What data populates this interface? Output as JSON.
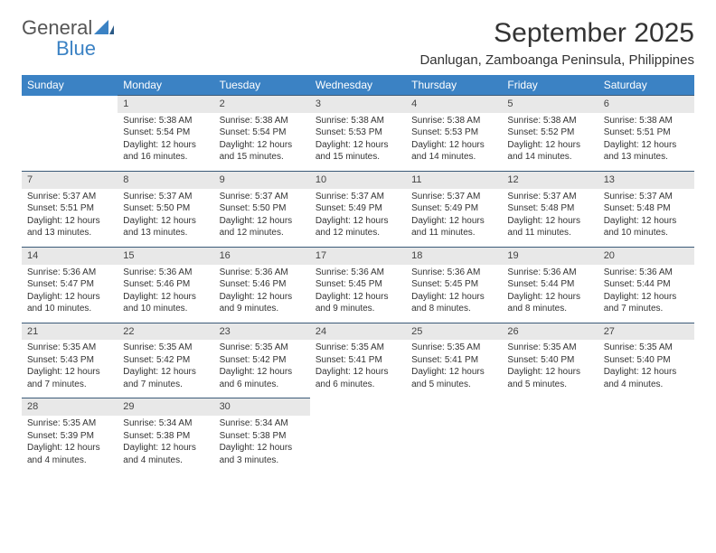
{
  "brand": {
    "general": "General",
    "blue": "Blue"
  },
  "title": "September 2025",
  "location": "Danlugan, Zamboanga Peninsula, Philippines",
  "colors": {
    "header_bg": "#3b82c4",
    "header_text": "#ffffff",
    "daynum_bg": "#e8e8e8",
    "daynum_border": "#3b5a78",
    "text": "#333333",
    "logo_gray": "#555555",
    "logo_blue": "#3b82c4"
  },
  "fonts": {
    "title_size": 30,
    "location_size": 15,
    "th_size": 12,
    "daynum_size": 11,
    "cell_size": 10
  },
  "weekdays": [
    "Sunday",
    "Monday",
    "Tuesday",
    "Wednesday",
    "Thursday",
    "Friday",
    "Saturday"
  ],
  "weeks": [
    {
      "nums": [
        "",
        "1",
        "2",
        "3",
        "4",
        "5",
        "6"
      ],
      "cells": [
        null,
        {
          "sunrise": "Sunrise: 5:38 AM",
          "sunset": "Sunset: 5:54 PM",
          "daylight": "Daylight: 12 hours and 16 minutes."
        },
        {
          "sunrise": "Sunrise: 5:38 AM",
          "sunset": "Sunset: 5:54 PM",
          "daylight": "Daylight: 12 hours and 15 minutes."
        },
        {
          "sunrise": "Sunrise: 5:38 AM",
          "sunset": "Sunset: 5:53 PM",
          "daylight": "Daylight: 12 hours and 15 minutes."
        },
        {
          "sunrise": "Sunrise: 5:38 AM",
          "sunset": "Sunset: 5:53 PM",
          "daylight": "Daylight: 12 hours and 14 minutes."
        },
        {
          "sunrise": "Sunrise: 5:38 AM",
          "sunset": "Sunset: 5:52 PM",
          "daylight": "Daylight: 12 hours and 14 minutes."
        },
        {
          "sunrise": "Sunrise: 5:38 AM",
          "sunset": "Sunset: 5:51 PM",
          "daylight": "Daylight: 12 hours and 13 minutes."
        }
      ]
    },
    {
      "nums": [
        "7",
        "8",
        "9",
        "10",
        "11",
        "12",
        "13"
      ],
      "cells": [
        {
          "sunrise": "Sunrise: 5:37 AM",
          "sunset": "Sunset: 5:51 PM",
          "daylight": "Daylight: 12 hours and 13 minutes."
        },
        {
          "sunrise": "Sunrise: 5:37 AM",
          "sunset": "Sunset: 5:50 PM",
          "daylight": "Daylight: 12 hours and 13 minutes."
        },
        {
          "sunrise": "Sunrise: 5:37 AM",
          "sunset": "Sunset: 5:50 PM",
          "daylight": "Daylight: 12 hours and 12 minutes."
        },
        {
          "sunrise": "Sunrise: 5:37 AM",
          "sunset": "Sunset: 5:49 PM",
          "daylight": "Daylight: 12 hours and 12 minutes."
        },
        {
          "sunrise": "Sunrise: 5:37 AM",
          "sunset": "Sunset: 5:49 PM",
          "daylight": "Daylight: 12 hours and 11 minutes."
        },
        {
          "sunrise": "Sunrise: 5:37 AM",
          "sunset": "Sunset: 5:48 PM",
          "daylight": "Daylight: 12 hours and 11 minutes."
        },
        {
          "sunrise": "Sunrise: 5:37 AM",
          "sunset": "Sunset: 5:48 PM",
          "daylight": "Daylight: 12 hours and 10 minutes."
        }
      ]
    },
    {
      "nums": [
        "14",
        "15",
        "16",
        "17",
        "18",
        "19",
        "20"
      ],
      "cells": [
        {
          "sunrise": "Sunrise: 5:36 AM",
          "sunset": "Sunset: 5:47 PM",
          "daylight": "Daylight: 12 hours and 10 minutes."
        },
        {
          "sunrise": "Sunrise: 5:36 AM",
          "sunset": "Sunset: 5:46 PM",
          "daylight": "Daylight: 12 hours and 10 minutes."
        },
        {
          "sunrise": "Sunrise: 5:36 AM",
          "sunset": "Sunset: 5:46 PM",
          "daylight": "Daylight: 12 hours and 9 minutes."
        },
        {
          "sunrise": "Sunrise: 5:36 AM",
          "sunset": "Sunset: 5:45 PM",
          "daylight": "Daylight: 12 hours and 9 minutes."
        },
        {
          "sunrise": "Sunrise: 5:36 AM",
          "sunset": "Sunset: 5:45 PM",
          "daylight": "Daylight: 12 hours and 8 minutes."
        },
        {
          "sunrise": "Sunrise: 5:36 AM",
          "sunset": "Sunset: 5:44 PM",
          "daylight": "Daylight: 12 hours and 8 minutes."
        },
        {
          "sunrise": "Sunrise: 5:36 AM",
          "sunset": "Sunset: 5:44 PM",
          "daylight": "Daylight: 12 hours and 7 minutes."
        }
      ]
    },
    {
      "nums": [
        "21",
        "22",
        "23",
        "24",
        "25",
        "26",
        "27"
      ],
      "cells": [
        {
          "sunrise": "Sunrise: 5:35 AM",
          "sunset": "Sunset: 5:43 PM",
          "daylight": "Daylight: 12 hours and 7 minutes."
        },
        {
          "sunrise": "Sunrise: 5:35 AM",
          "sunset": "Sunset: 5:42 PM",
          "daylight": "Daylight: 12 hours and 7 minutes."
        },
        {
          "sunrise": "Sunrise: 5:35 AM",
          "sunset": "Sunset: 5:42 PM",
          "daylight": "Daylight: 12 hours and 6 minutes."
        },
        {
          "sunrise": "Sunrise: 5:35 AM",
          "sunset": "Sunset: 5:41 PM",
          "daylight": "Daylight: 12 hours and 6 minutes."
        },
        {
          "sunrise": "Sunrise: 5:35 AM",
          "sunset": "Sunset: 5:41 PM",
          "daylight": "Daylight: 12 hours and 5 minutes."
        },
        {
          "sunrise": "Sunrise: 5:35 AM",
          "sunset": "Sunset: 5:40 PM",
          "daylight": "Daylight: 12 hours and 5 minutes."
        },
        {
          "sunrise": "Sunrise: 5:35 AM",
          "sunset": "Sunset: 5:40 PM",
          "daylight": "Daylight: 12 hours and 4 minutes."
        }
      ]
    },
    {
      "nums": [
        "28",
        "29",
        "30",
        "",
        "",
        "",
        ""
      ],
      "cells": [
        {
          "sunrise": "Sunrise: 5:35 AM",
          "sunset": "Sunset: 5:39 PM",
          "daylight": "Daylight: 12 hours and 4 minutes."
        },
        {
          "sunrise": "Sunrise: 5:34 AM",
          "sunset": "Sunset: 5:38 PM",
          "daylight": "Daylight: 12 hours and 4 minutes."
        },
        {
          "sunrise": "Sunrise: 5:34 AM",
          "sunset": "Sunset: 5:38 PM",
          "daylight": "Daylight: 12 hours and 3 minutes."
        },
        null,
        null,
        null,
        null
      ]
    }
  ]
}
